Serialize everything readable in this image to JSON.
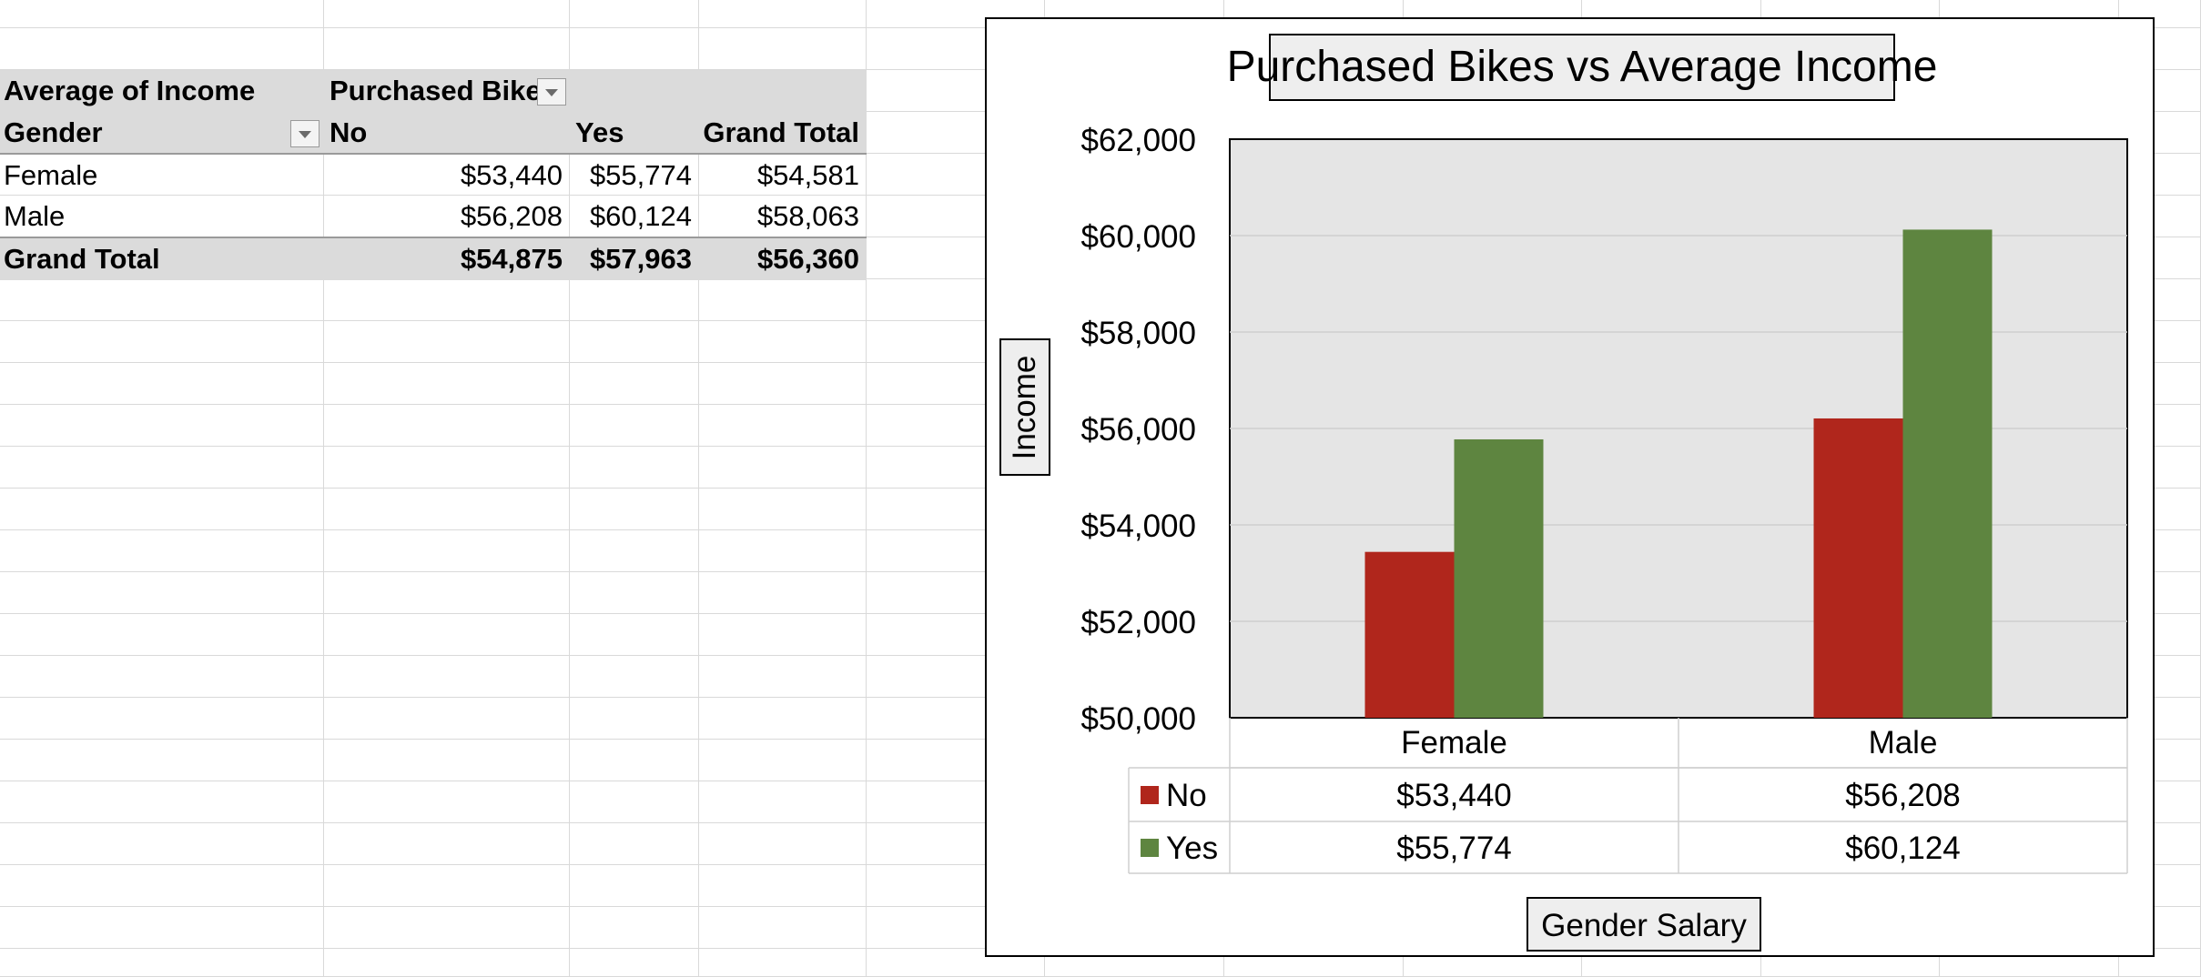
{
  "pivot": {
    "corner_label": "Average of Income",
    "column_field": "Purchased Bike",
    "row_field": "Gender",
    "col_headers": [
      "No",
      "Yes",
      "Grand Total"
    ],
    "rows": [
      {
        "label": "Female",
        "cells": [
          "$53,440",
          "$55,774",
          "$54,581"
        ]
      },
      {
        "label": "Male",
        "cells": [
          "$56,208",
          "$60,124",
          "$58,063"
        ]
      }
    ],
    "grand_total": {
      "label": "Grand Total",
      "cells": [
        "$54,875",
        "$57,963",
        "$56,360"
      ]
    }
  },
  "chart": {
    "title": "Purchased Bikes vs Average Income",
    "ylabel": "Income",
    "xlabel": "Gender Salary"
  },
  "chart_data": {
    "type": "bar",
    "title": "Purchased Bikes vs Average Income",
    "xlabel": "Gender Salary",
    "ylabel": "Income",
    "categories": [
      "Female",
      "Male"
    ],
    "series": [
      {
        "name": "No",
        "values": [
          53440,
          56208
        ],
        "labels": [
          "$53,440",
          "$56,208"
        ],
        "color": "#b0261c"
      },
      {
        "name": "Yes",
        "values": [
          55774,
          60124
        ],
        "labels": [
          "$55,774",
          "$60,124"
        ],
        "color": "#5e8540"
      }
    ],
    "ylim": [
      50000,
      62000
    ],
    "yticks": [
      62000,
      60000,
      58000,
      56000,
      54000,
      52000,
      50000
    ],
    "ytick_labels": [
      "$62,000",
      "$60,000",
      "$58,000",
      "$56,000",
      "$54,000",
      "$52,000",
      "$50,000"
    ],
    "grid": true,
    "plot_background": "#e5e5e5",
    "legend_placement": "data table below plot"
  }
}
